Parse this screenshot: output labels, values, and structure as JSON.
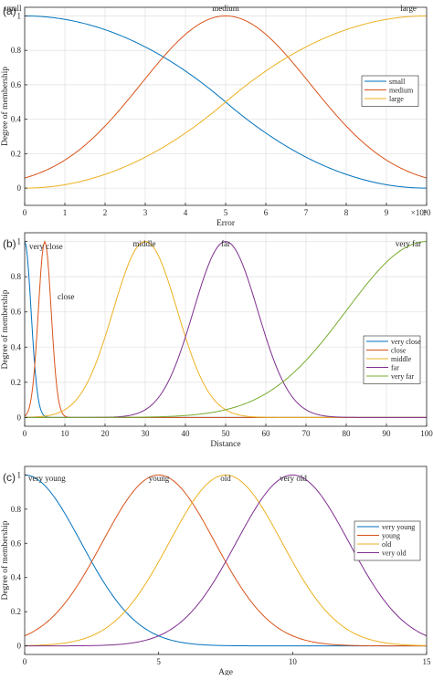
{
  "chart_data": [
    {
      "type": "line",
      "panel": "(a)",
      "xlabel": "Error",
      "ylabel": "Degree of membership",
      "xlim": [
        0,
        10
      ],
      "ylim": [
        -0.1,
        1.05
      ],
      "xticks": [
        "0",
        "1",
        "2",
        "3",
        "4",
        "5",
        "6",
        "7",
        "8",
        "9",
        "10"
      ],
      "yticks": [
        "0",
        "0.2",
        "0.4",
        "0.6",
        "0.8",
        "1"
      ],
      "multiplier": "×10⁴",
      "grid": true,
      "legend_position": "right",
      "series": [
        {
          "name": "small",
          "color": "#0072BD",
          "shape": "zmf",
          "params": [
            0,
            10
          ]
        },
        {
          "name": "medium",
          "color": "#D95319",
          "shape": "gauss",
          "params": [
            5,
            2.1
          ]
        },
        {
          "name": "large",
          "color": "#EDB120",
          "shape": "smf",
          "params": [
            0,
            10
          ]
        }
      ],
      "top_labels": [
        "small",
        "medium",
        "large"
      ]
    },
    {
      "type": "line",
      "panel": "(b)",
      "xlabel": "Distance",
      "ylabel": "Degree of membership",
      "xlim": [
        0,
        100
      ],
      "ylim": [
        -0.05,
        1.05
      ],
      "xticks": [
        "0",
        "10",
        "20",
        "30",
        "40",
        "50",
        "60",
        "70",
        "80",
        "90",
        "100"
      ],
      "yticks": [
        "0",
        "0.2",
        "0.4",
        "0.6",
        "0.8",
        "1"
      ],
      "grid": true,
      "legend_position": "right",
      "series": [
        {
          "name": "very close",
          "color": "#0072BD",
          "shape": "gauss",
          "params": [
            0,
            1.6
          ]
        },
        {
          "name": "close",
          "color": "#D95319",
          "shape": "gauss",
          "params": [
            5,
            1.6
          ]
        },
        {
          "name": "middle",
          "color": "#EDB120",
          "shape": "gauss",
          "params": [
            30,
            8
          ]
        },
        {
          "name": "far",
          "color": "#7E2F8E",
          "shape": "gauss",
          "params": [
            50,
            8
          ]
        },
        {
          "name": "very far",
          "color": "#77AC30",
          "shape": "gauss",
          "params": [
            100,
            20
          ]
        }
      ],
      "top_labels": [
        "very close",
        "close",
        "middle",
        "far",
        "very far"
      ]
    },
    {
      "type": "line",
      "panel": "(c)",
      "xlabel": "Age",
      "ylabel": "Degree of membership",
      "xlim": [
        0,
        15
      ],
      "ylim": [
        -0.05,
        1.05
      ],
      "xticks": [
        "0",
        "5",
        "10",
        "15"
      ],
      "yticks": [
        "0",
        "0.2",
        "0.4",
        "0.6",
        "0.8",
        "1"
      ],
      "grid": false,
      "legend_position": "top-right",
      "series": [
        {
          "name": "very young",
          "color": "#0072BD",
          "shape": "gauss",
          "params": [
            0,
            2.1
          ]
        },
        {
          "name": "young",
          "color": "#D95319",
          "shape": "gauss",
          "params": [
            5,
            2.1
          ]
        },
        {
          "name": "old",
          "color": "#EDB120",
          "shape": "gauss",
          "params": [
            7.5,
            2.1
          ]
        },
        {
          "name": "very old",
          "color": "#7E2F8E",
          "shape": "gauss",
          "params": [
            10,
            2.1
          ]
        }
      ],
      "top_labels": [
        "very young",
        "young",
        "old",
        "very old"
      ]
    }
  ]
}
